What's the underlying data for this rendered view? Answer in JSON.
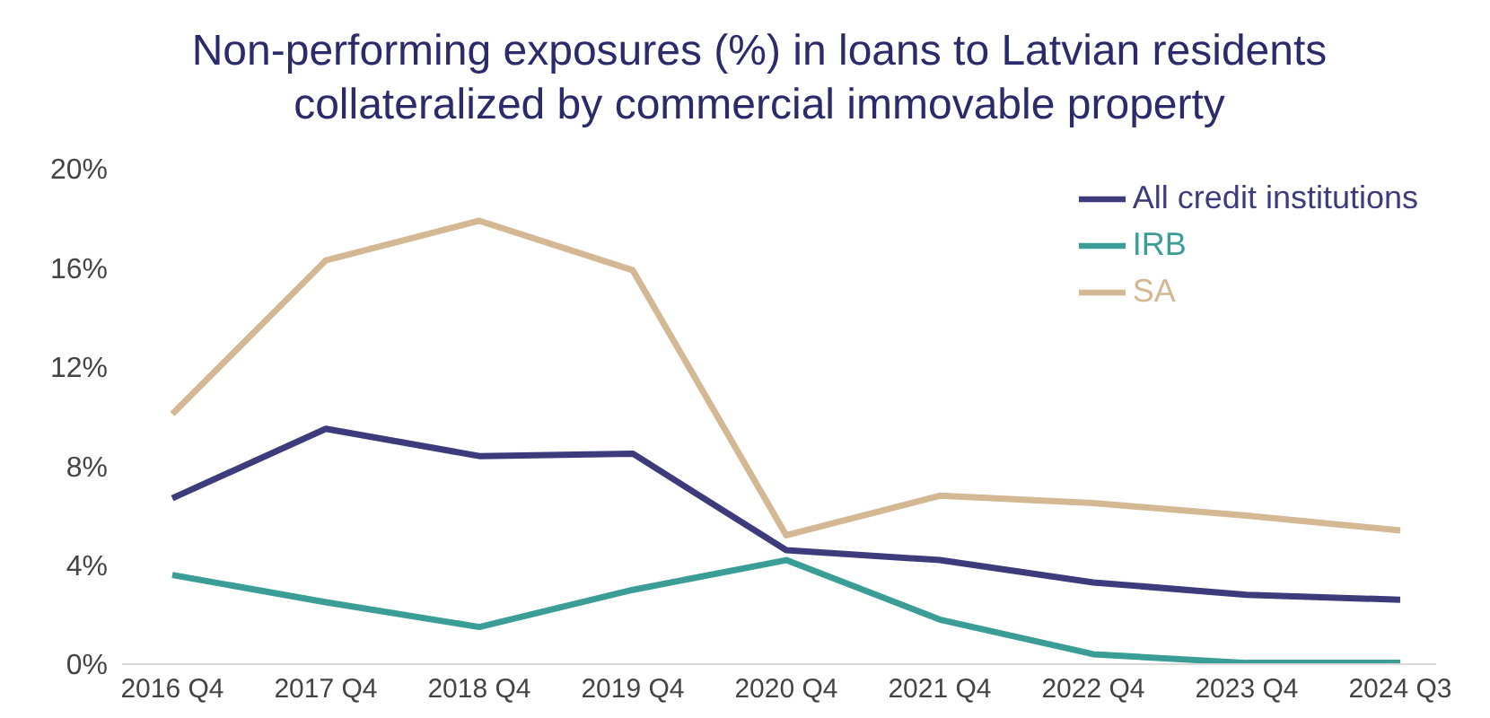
{
  "chart_data": {
    "type": "line",
    "title": "Non-performing exposures (%) in loans to Latvian residents collateralized by commercial immovable property",
    "categories": [
      "2016 Q4",
      "2017 Q4",
      "2018 Q4",
      "2019 Q4",
      "2020 Q4",
      "2021 Q4",
      "2022 Q4",
      "2023 Q4",
      "2024 Q3"
    ],
    "series": [
      {
        "name": "All credit institutions",
        "color": "#3d3b7c",
        "values": [
          6.7,
          9.5,
          8.4,
          8.5,
          4.6,
          4.2,
          3.3,
          2.8,
          2.6
        ]
      },
      {
        "name": "IRB",
        "color": "#3a9e96",
        "values": [
          3.6,
          2.5,
          1.5,
          3.0,
          4.2,
          1.8,
          0.4,
          0.05,
          0.05
        ]
      },
      {
        "name": "SA",
        "color": "#d4b793",
        "values": [
          10.1,
          16.3,
          17.9,
          15.9,
          5.2,
          6.8,
          6.5,
          6.0,
          5.4
        ]
      }
    ],
    "ylim": [
      0,
      20
    ],
    "yticks": [
      {
        "value": 0,
        "label": "0%"
      },
      {
        "value": 4,
        "label": "4%"
      },
      {
        "value": 8,
        "label": "8%"
      },
      {
        "value": 12,
        "label": "12%"
      },
      {
        "value": 16,
        "label": "16%"
      },
      {
        "value": 20,
        "label": "20%"
      }
    ],
    "grid": false,
    "legend": "top right",
    "marker": "none",
    "line_style": "solid"
  }
}
